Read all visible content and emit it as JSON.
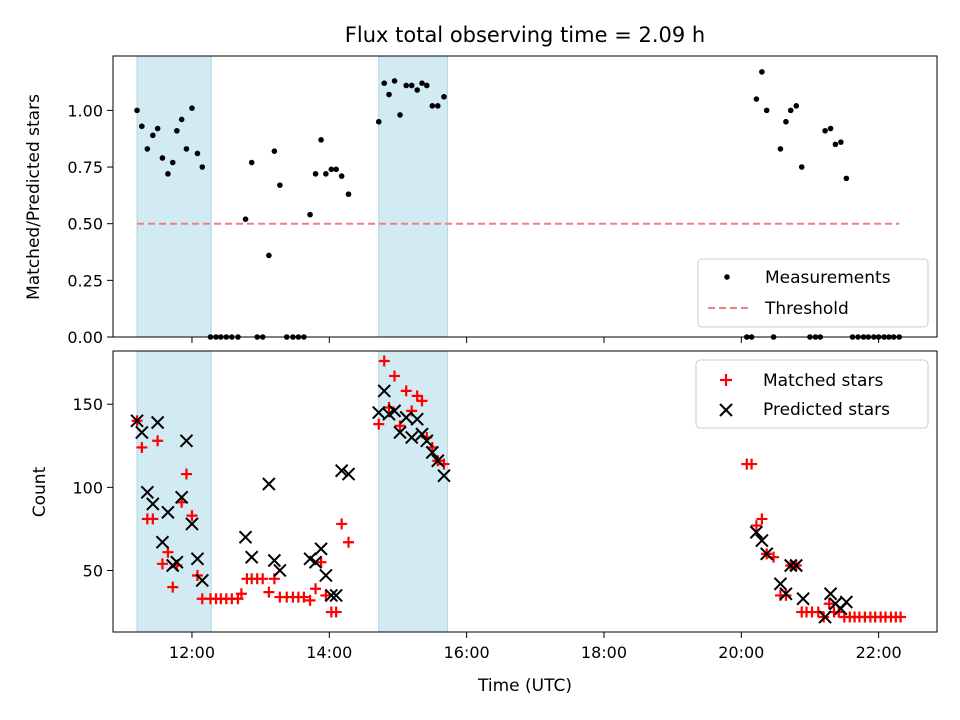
{
  "chart_data": {
    "type": "scatter",
    "title": "Flux total observing time = 2.09 h",
    "xlabel": "Time (UTC)",
    "x_ticks": [
      "12:00",
      "14:00",
      "16:00",
      "18:00",
      "20:00",
      "22:00"
    ],
    "x_tick_hours": [
      12,
      14,
      16,
      18,
      20,
      22
    ],
    "xlim_hours": [
      10.85,
      22.85
    ],
    "shaded_spans_hours": [
      [
        11.2,
        12.28
      ],
      [
        14.72,
        15.72
      ]
    ],
    "shade_color": "#add8e6",
    "top_panel": {
      "ylabel": "Matched/Predicted stars",
      "ylim": [
        0,
        1.24
      ],
      "y_ticks": [
        0.0,
        0.25,
        0.5,
        0.75,
        1.0
      ],
      "y_tick_labels": [
        "0.00",
        "0.25",
        "0.50",
        "0.75",
        "1.00"
      ],
      "threshold": {
        "name": "Threshold",
        "value": 0.5,
        "x_range_hours": [
          11.2,
          22.3
        ],
        "color": "#f08080"
      },
      "series": [
        {
          "name": "Measurements",
          "color": "#000000",
          "points": [
            [
              11.2,
              1.0
            ],
            [
              11.27,
              0.93
            ],
            [
              11.35,
              0.83
            ],
            [
              11.43,
              0.89
            ],
            [
              11.5,
              0.92
            ],
            [
              11.57,
              0.79
            ],
            [
              11.65,
              0.72
            ],
            [
              11.72,
              0.77
            ],
            [
              11.78,
              0.91
            ],
            [
              11.85,
              0.96
            ],
            [
              11.92,
              0.83
            ],
            [
              12.0,
              1.01
            ],
            [
              12.08,
              0.81
            ],
            [
              12.15,
              0.75
            ],
            [
              12.27,
              0.0
            ],
            [
              12.35,
              0.0
            ],
            [
              12.42,
              0.0
            ],
            [
              12.5,
              0.0
            ],
            [
              12.58,
              0.0
            ],
            [
              12.67,
              0.0
            ],
            [
              12.78,
              0.52
            ],
            [
              12.87,
              0.77
            ],
            [
              12.95,
              0.0
            ],
            [
              13.03,
              0.0
            ],
            [
              13.12,
              0.36
            ],
            [
              13.2,
              0.82
            ],
            [
              13.28,
              0.67
            ],
            [
              13.38,
              0.0
            ],
            [
              13.47,
              0.0
            ],
            [
              13.55,
              0.0
            ],
            [
              13.63,
              0.0
            ],
            [
              13.72,
              0.54
            ],
            [
              13.8,
              0.72
            ],
            [
              13.88,
              0.87
            ],
            [
              13.95,
              0.72
            ],
            [
              14.03,
              0.74
            ],
            [
              14.1,
              0.74
            ],
            [
              14.18,
              0.71
            ],
            [
              14.28,
              0.63
            ],
            [
              14.72,
              0.95
            ],
            [
              14.8,
              1.12
            ],
            [
              14.87,
              1.07
            ],
            [
              14.95,
              1.13
            ],
            [
              15.03,
              0.98
            ],
            [
              15.12,
              1.11
            ],
            [
              15.2,
              1.11
            ],
            [
              15.28,
              1.09
            ],
            [
              15.35,
              1.12
            ],
            [
              15.42,
              1.11
            ],
            [
              15.5,
              1.02
            ],
            [
              15.58,
              1.02
            ],
            [
              15.67,
              1.06
            ],
            [
              20.08,
              0.0
            ],
            [
              20.15,
              0.0
            ],
            [
              20.22,
              1.05
            ],
            [
              20.3,
              1.17
            ],
            [
              20.37,
              1.0
            ],
            [
              20.47,
              0.0
            ],
            [
              20.57,
              0.83
            ],
            [
              20.65,
              0.95
            ],
            [
              20.72,
              1.0
            ],
            [
              20.8,
              1.02
            ],
            [
              20.88,
              0.75
            ],
            [
              21.0,
              0.0
            ],
            [
              21.08,
              0.0
            ],
            [
              21.15,
              0.0
            ],
            [
              21.22,
              0.91
            ],
            [
              21.3,
              0.92
            ],
            [
              21.37,
              0.85
            ],
            [
              21.45,
              0.86
            ],
            [
              21.53,
              0.7
            ],
            [
              21.62,
              0.0
            ],
            [
              21.7,
              0.0
            ],
            [
              21.78,
              0.0
            ],
            [
              21.85,
              0.0
            ],
            [
              21.93,
              0.0
            ],
            [
              22.0,
              0.0
            ],
            [
              22.08,
              0.0
            ],
            [
              22.15,
              0.0
            ],
            [
              22.22,
              0.0
            ],
            [
              22.3,
              0.0
            ]
          ]
        }
      ],
      "legend": {
        "position": "lower-right",
        "entries": [
          "Measurements",
          "Threshold"
        ]
      }
    },
    "bottom_panel": {
      "ylabel": "Count",
      "ylim": [
        13,
        182
      ],
      "y_ticks": [
        50,
        100,
        150
      ],
      "y_tick_labels": [
        "50",
        "100",
        "150"
      ],
      "series": [
        {
          "name": "Matched stars",
          "color": "#ff0000",
          "marker": "plus",
          "points": [
            [
              11.2,
              140
            ],
            [
              11.27,
              124
            ],
            [
              11.35,
              81
            ],
            [
              11.43,
              81
            ],
            [
              11.5,
              128
            ],
            [
              11.57,
              54
            ],
            [
              11.65,
              61
            ],
            [
              11.72,
              40
            ],
            [
              11.78,
              53
            ],
            [
              11.85,
              91
            ],
            [
              11.92,
              108
            ],
            [
              12.0,
              83
            ],
            [
              12.08,
              47
            ],
            [
              12.15,
              33
            ],
            [
              12.27,
              33
            ],
            [
              12.35,
              33
            ],
            [
              12.42,
              33
            ],
            [
              12.5,
              33
            ],
            [
              12.58,
              33
            ],
            [
              12.67,
              33
            ],
            [
              12.72,
              36
            ],
            [
              12.8,
              45
            ],
            [
              12.87,
              45
            ],
            [
              12.95,
              45
            ],
            [
              13.03,
              45
            ],
            [
              13.12,
              37
            ],
            [
              13.2,
              45
            ],
            [
              13.28,
              34
            ],
            [
              13.38,
              34
            ],
            [
              13.47,
              34
            ],
            [
              13.55,
              34
            ],
            [
              13.63,
              34
            ],
            [
              13.72,
              32
            ],
            [
              13.8,
              39
            ],
            [
              13.88,
              55
            ],
            [
              13.95,
              35
            ],
            [
              14.03,
              25
            ],
            [
              14.1,
              25
            ],
            [
              14.18,
              78
            ],
            [
              14.28,
              67
            ],
            [
              14.72,
              138
            ],
            [
              14.8,
              176
            ],
            [
              14.87,
              148
            ],
            [
              14.95,
              167
            ],
            [
              15.03,
              137
            ],
            [
              15.12,
              158
            ],
            [
              15.2,
              146
            ],
            [
              15.28,
              155
            ],
            [
              15.35,
              152
            ],
            [
              15.42,
              130
            ],
            [
              15.5,
              124
            ],
            [
              15.58,
              116
            ],
            [
              15.67,
              114
            ],
            [
              20.08,
              114
            ],
            [
              20.15,
              114
            ],
            [
              20.22,
              77
            ],
            [
              20.3,
              81
            ],
            [
              20.37,
              60
            ],
            [
              20.47,
              58
            ],
            [
              20.57,
              35
            ],
            [
              20.65,
              35
            ],
            [
              20.72,
              53
            ],
            [
              20.8,
              53
            ],
            [
              20.88,
              25
            ],
            [
              20.95,
              25
            ],
            [
              21.03,
              25
            ],
            [
              21.12,
              25
            ],
            [
              21.2,
              22
            ],
            [
              21.28,
              30
            ],
            [
              21.35,
              25
            ],
            [
              21.42,
              25
            ],
            [
              21.5,
              22
            ],
            [
              21.58,
              22
            ],
            [
              21.65,
              22
            ],
            [
              21.72,
              22
            ],
            [
              21.8,
              22
            ],
            [
              21.88,
              22
            ],
            [
              21.95,
              22
            ],
            [
              22.03,
              22
            ],
            [
              22.1,
              22
            ],
            [
              22.18,
              22
            ],
            [
              22.25,
              22
            ],
            [
              22.32,
              22
            ]
          ]
        },
        {
          "name": "Predicted stars",
          "color": "#000000",
          "marker": "x",
          "points": [
            [
              11.2,
              140
            ],
            [
              11.27,
              133
            ],
            [
              11.35,
              97
            ],
            [
              11.43,
              90
            ],
            [
              11.5,
              139
            ],
            [
              11.57,
              67
            ],
            [
              11.65,
              85
            ],
            [
              11.72,
              53
            ],
            [
              11.78,
              55
            ],
            [
              11.85,
              94
            ],
            [
              11.92,
              128
            ],
            [
              12.0,
              78
            ],
            [
              12.08,
              57
            ],
            [
              12.15,
              44
            ],
            [
              12.78,
              70
            ],
            [
              12.87,
              58
            ],
            [
              13.12,
              102
            ],
            [
              13.2,
              56
            ],
            [
              13.28,
              50
            ],
            [
              13.72,
              57
            ],
            [
              13.8,
              55
            ],
            [
              13.88,
              63
            ],
            [
              13.95,
              47
            ],
            [
              14.03,
              35
            ],
            [
              14.1,
              35
            ],
            [
              14.18,
              110
            ],
            [
              14.28,
              108
            ],
            [
              14.72,
              145
            ],
            [
              14.8,
              158
            ],
            [
              14.87,
              144
            ],
            [
              14.95,
              146
            ],
            [
              15.03,
              133
            ],
            [
              15.12,
              142
            ],
            [
              15.2,
              130
            ],
            [
              15.28,
              141
            ],
            [
              15.35,
              132
            ],
            [
              15.42,
              128
            ],
            [
              15.5,
              121
            ],
            [
              15.58,
              116
            ],
            [
              15.67,
              107
            ],
            [
              20.22,
              73
            ],
            [
              20.3,
              68
            ],
            [
              20.37,
              60
            ],
            [
              20.57,
              42
            ],
            [
              20.65,
              36
            ],
            [
              20.72,
              53
            ],
            [
              20.8,
              53
            ],
            [
              20.9,
              33
            ],
            [
              21.22,
              22
            ],
            [
              21.3,
              36
            ],
            [
              21.37,
              30
            ],
            [
              21.45,
              27
            ],
            [
              21.53,
              31
            ]
          ]
        }
      ],
      "legend": {
        "position": "upper-right",
        "entries": [
          "Matched stars",
          "Predicted stars"
        ]
      }
    }
  }
}
